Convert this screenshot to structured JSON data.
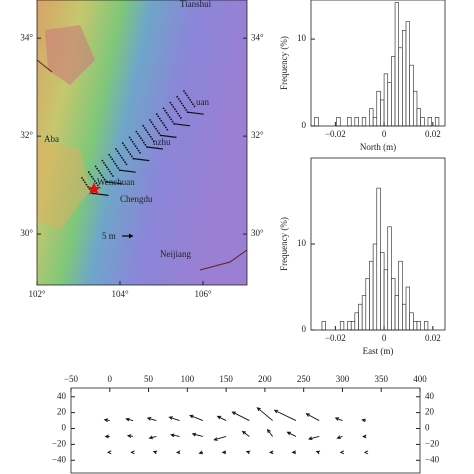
{
  "chart_data": [
    {
      "type": "map",
      "xlim": [
        102,
        107.06
      ],
      "ylim": [
        28.96,
        34.78
      ],
      "xticks": [
        {
          "value": 102,
          "label": "102°"
        },
        {
          "value": 104,
          "label": "104°"
        },
        {
          "value": 106,
          "label": "106°"
        }
      ],
      "yticks": [
        {
          "value": 30,
          "label": "30°"
        },
        {
          "value": 32,
          "label": "32°"
        },
        {
          "value": 34,
          "label": "34°"
        }
      ],
      "places": [
        "Tianshui",
        "Aba",
        "Wenchuan",
        "Chengdu",
        "Neijiang",
        "uan",
        "nzhu"
      ],
      "scale_label": "5 m"
    },
    {
      "type": "histogram",
      "xlabel": "North (m)",
      "ylabel": "Frequency (%)",
      "color": "#ffffff",
      "xlim": [
        -0.03,
        0.025
      ],
      "ylim": [
        0,
        14.5
      ],
      "xticks": [
        {
          "value": -0.02,
          "label": "−0.02"
        },
        0,
        0.02
      ],
      "yticks": [
        0,
        10
      ],
      "bins": [
        -0.03,
        -0.0285,
        -0.027,
        -0.0255,
        -0.024,
        -0.0225,
        -0.021,
        -0.0195,
        -0.018,
        -0.0165,
        -0.015,
        -0.0135,
        -0.012,
        -0.0105,
        -0.009,
        -0.0075,
        -0.006,
        -0.0045,
        -0.003,
        -0.0015,
        0,
        0.0015,
        0.003,
        0.0045,
        0.006,
        0.0075,
        0.009,
        0.0105,
        0.012,
        0.0135,
        0.015,
        0.0165,
        0.018,
        0.0195,
        0.021,
        0.0225
      ],
      "counts": [
        0,
        1,
        0,
        0,
        0,
        0,
        0,
        1,
        0,
        0,
        1,
        0,
        1,
        0,
        1,
        0,
        2,
        1,
        4,
        3,
        6,
        5,
        8,
        14.2,
        9,
        11,
        12,
        7,
        4,
        2,
        1,
        0,
        1,
        0,
        1
      ]
    },
    {
      "type": "histogram",
      "xlabel": "East (m)",
      "ylabel": "Frequency (%)",
      "color": "#ffffff",
      "xlim": [
        -0.03,
        0.025
      ],
      "ylim": [
        0,
        20
      ],
      "xticks": [
        {
          "value": -0.02,
          "label": "−0.02"
        },
        0,
        0.02
      ],
      "yticks": [
        0,
        10
      ],
      "bins": [
        -0.03,
        -0.0285,
        -0.027,
        -0.0255,
        -0.024,
        -0.0225,
        -0.021,
        -0.0195,
        -0.018,
        -0.0165,
        -0.015,
        -0.0135,
        -0.012,
        -0.0105,
        -0.009,
        -0.0075,
        -0.006,
        -0.0045,
        -0.003,
        -0.0015,
        0,
        0.0015,
        0.003,
        0.0045,
        0.006,
        0.0075,
        0.009,
        0.0105,
        0.012,
        0.0135,
        0.015,
        0.0165,
        0.018,
        0.0195,
        0.021,
        0.0225
      ],
      "counts": [
        0,
        0,
        0,
        1,
        0,
        0,
        0,
        0,
        1,
        0,
        1,
        1,
        2,
        3,
        4,
        6,
        8,
        10,
        16.5,
        9,
        7,
        12,
        6,
        4,
        8,
        3,
        5,
        2,
        1,
        1,
        0,
        1,
        0,
        0,
        0
      ]
    },
    {
      "type": "quiver",
      "xlim": [
        -50,
        400
      ],
      "ylim": [
        -56,
        51
      ],
      "xticks": [
        {
          "value": -50,
          "label": "−50"
        },
        0,
        50,
        100,
        150,
        200,
        250,
        300,
        350,
        400
      ],
      "yticks": [
        40,
        20,
        0,
        {
          "value": -20,
          "label": "−20"
        },
        {
          "value": -40,
          "label": "−40"
        }
      ],
      "x": [
        0,
        30,
        60,
        90,
        120,
        150,
        180,
        210,
        240,
        270,
        300,
        330,
        0,
        30,
        60,
        90,
        120,
        150,
        180,
        210,
        240,
        270,
        300,
        330,
        0,
        30,
        60,
        90,
        120,
        150,
        180,
        210,
        240,
        270,
        300,
        330
      ],
      "y": [
        10,
        10,
        10,
        10,
        10,
        10,
        10,
        10,
        10,
        10,
        10,
        10,
        -10,
        -10,
        -10,
        -10,
        -10,
        -10,
        -10,
        -10,
        -10,
        -10,
        -10,
        -10,
        -30,
        -30,
        -30,
        -30,
        -30,
        -30,
        -30,
        -30,
        -30,
        -30,
        -30,
        -30
      ],
      "u": [
        -6,
        -8,
        -10,
        -12,
        -15,
        -10,
        -20,
        -18,
        -25,
        -15,
        -8,
        -4,
        -5,
        -6,
        -8,
        -10,
        -12,
        -14,
        -8,
        -6,
        -10,
        -12,
        -6,
        -3,
        -2,
        -2,
        -3,
        -3,
        -4,
        -4,
        -3,
        -3,
        -4,
        -3,
        -2,
        -1
      ],
      "v": [
        1,
        2,
        3,
        4,
        6,
        5,
        10,
        15,
        12,
        8,
        3,
        1,
        0,
        1,
        -2,
        2,
        3,
        -4,
        6,
        8,
        5,
        -3,
        -2,
        0,
        0,
        0,
        1,
        0,
        -1,
        0,
        1,
        0,
        0,
        1,
        0,
        0
      ]
    }
  ]
}
